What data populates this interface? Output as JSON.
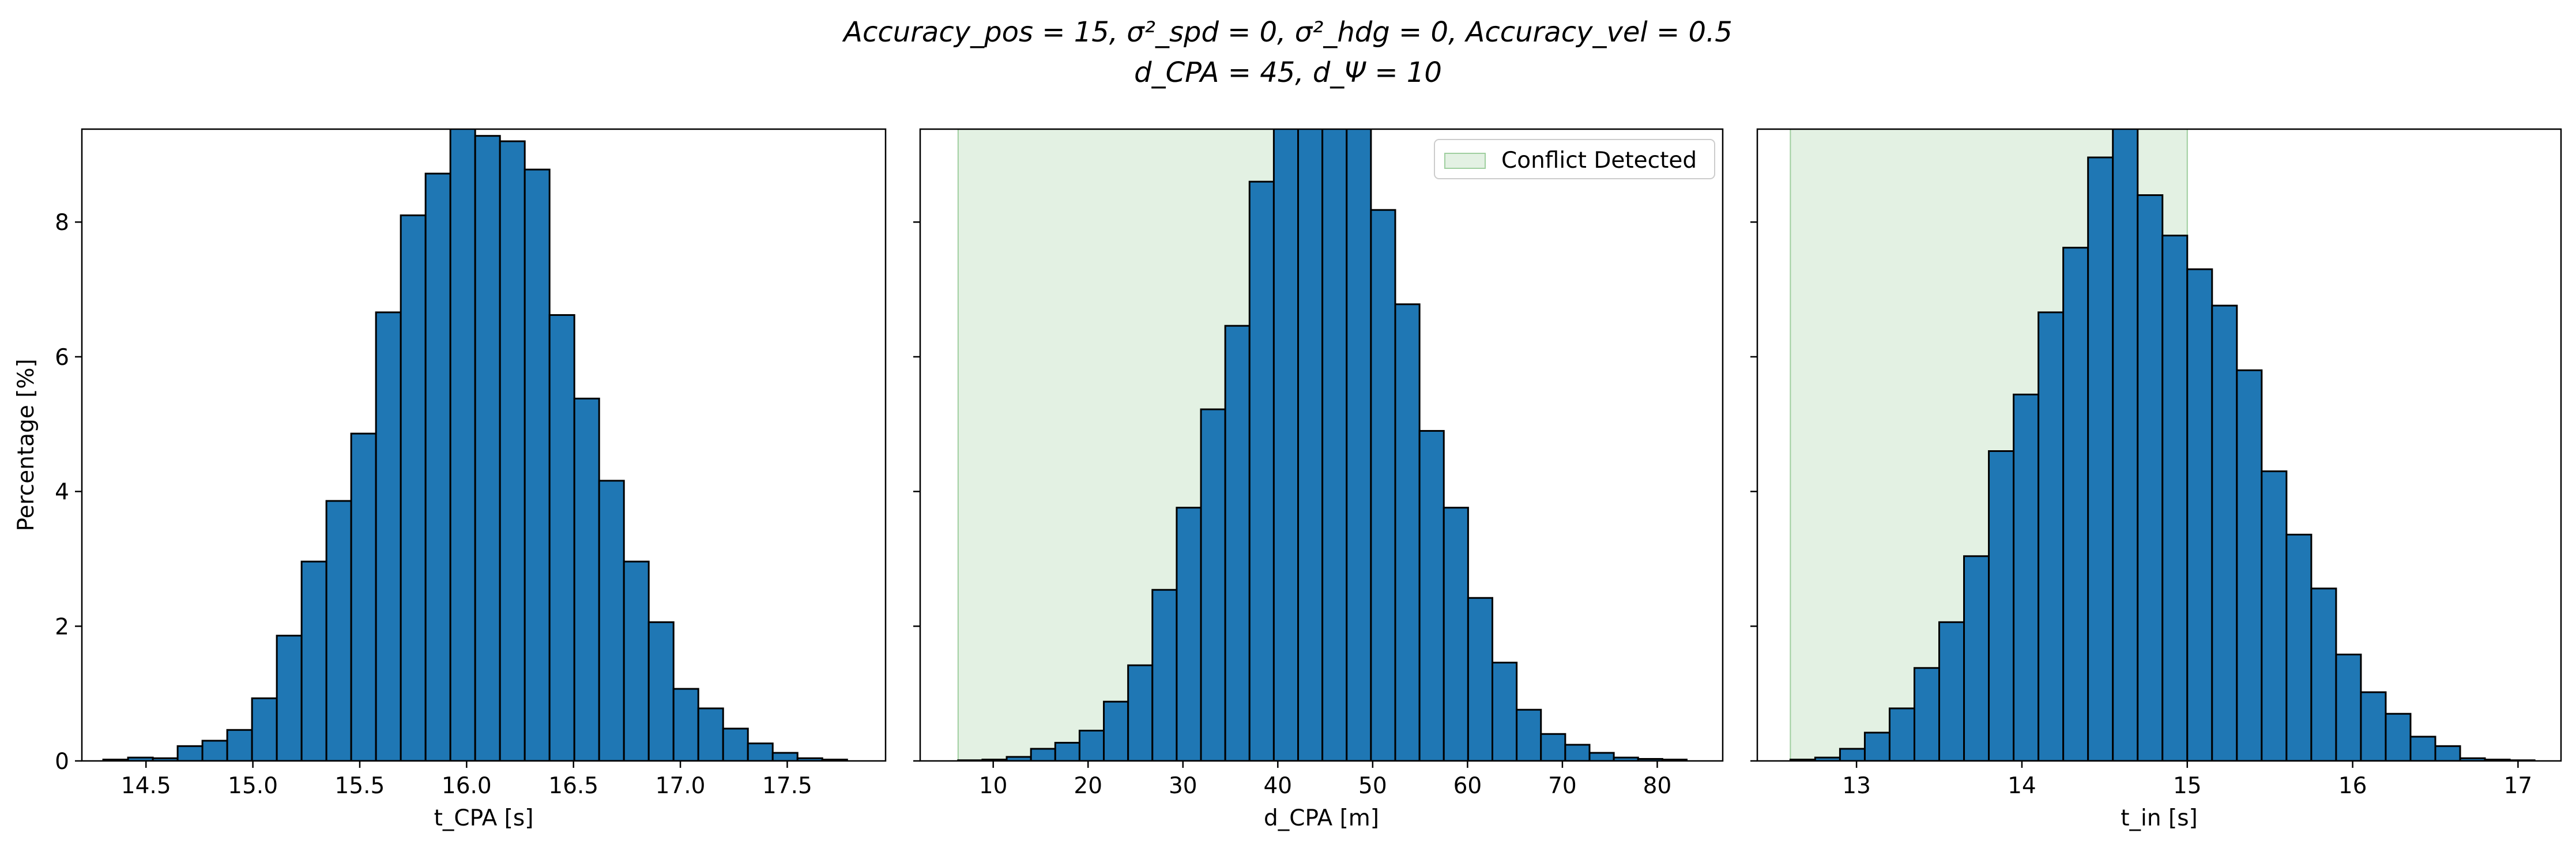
{
  "figure": {
    "title_line1": "Accuracy_pos = 15, σ²_spd = 0, σ²_hdg = 0, Accuracy_vel = 0.5",
    "title_line2": "d_CPA = 45, d_Ψ = 10"
  },
  "colors": {
    "bar_fill": "#1f77b4",
    "bar_edge": "#000000",
    "conflict_fill": "#e3f1e3",
    "conflict_edge": "#9fcf9f"
  },
  "chart_data": [
    {
      "type": "bar",
      "title": "",
      "xlabel": "t_CPA [s]",
      "ylabel": "Percentage [%]",
      "xlim": [
        14.2,
        17.96
      ],
      "ylim": [
        0,
        9.38
      ],
      "xticks": [
        14.5,
        15.0,
        15.5,
        16.0,
        16.5,
        17.0,
        17.5
      ],
      "xtick_labels": [
        "14.5",
        "15.0",
        "15.5",
        "16.0",
        "16.5",
        "17.0",
        "17.5"
      ],
      "yticks": [
        0,
        2,
        4,
        6,
        8
      ],
      "ytick_labels": [
        "0",
        "2",
        "4",
        "6",
        "8"
      ],
      "bin_start": 14.3,
      "bin_width": 0.116,
      "values": [
        0.02,
        0.05,
        0.04,
        0.22,
        0.3,
        0.46,
        0.93,
        1.86,
        2.96,
        3.86,
        4.86,
        6.66,
        8.1,
        8.72,
        9.7,
        9.28,
        9.2,
        8.78,
        6.62,
        5.38,
        4.16,
        2.96,
        2.06,
        1.07,
        0.78,
        0.48,
        0.26,
        0.12,
        0.04,
        0.02
      ],
      "shade": null,
      "legend": null
    },
    {
      "type": "bar",
      "title": "",
      "xlabel": "d_CPA [m]",
      "ylabel": "",
      "xlim": [
        2.3,
        86.9
      ],
      "ylim": [
        0,
        9.38
      ],
      "xticks": [
        10,
        20,
        30,
        40,
        50,
        60,
        70,
        80
      ],
      "xtick_labels": [
        "10",
        "20",
        "30",
        "40",
        "50",
        "60",
        "70",
        "80"
      ],
      "yticks": [
        0,
        2,
        4,
        6,
        8
      ],
      "ytick_labels": [],
      "bin_start": 6.3,
      "bin_width": 2.56,
      "values": [
        0.01,
        0.02,
        0.06,
        0.18,
        0.27,
        0.45,
        0.88,
        1.42,
        2.54,
        3.76,
        5.22,
        6.46,
        8.6,
        9.9,
        9.8,
        9.9,
        9.6,
        8.18,
        6.78,
        4.9,
        3.76,
        2.42,
        1.46,
        0.76,
        0.4,
        0.24,
        0.12,
        0.05,
        0.03,
        0.02
      ],
      "shade": {
        "x0": 6.3,
        "x1": 43.1
      },
      "legend": {
        "label": "Conflict Detected",
        "placement": "upper right"
      }
    },
    {
      "type": "bar",
      "title": "",
      "xlabel": "t_in [s]",
      "ylabel": "",
      "xlim": [
        12.4,
        17.26
      ],
      "ylim": [
        0,
        9.38
      ],
      "xticks": [
        13,
        14,
        15,
        16,
        17
      ],
      "xtick_labels": [
        "13",
        "14",
        "15",
        "16",
        "17"
      ],
      "yticks": [
        0,
        2,
        4,
        6,
        8
      ],
      "ytick_labels": [],
      "bin_start": 12.6,
      "bin_width": 0.15,
      "values": [
        0.02,
        0.05,
        0.18,
        0.42,
        0.78,
        1.38,
        2.06,
        3.04,
        4.6,
        5.44,
        6.66,
        7.62,
        8.96,
        9.6,
        8.4,
        7.8,
        7.3,
        6.76,
        5.8,
        4.3,
        3.36,
        2.56,
        1.58,
        1.02,
        0.7,
        0.36,
        0.22,
        0.04,
        0.02,
        0.01
      ],
      "shade": {
        "x0": 12.6,
        "x1": 15.0
      },
      "legend": null
    }
  ]
}
